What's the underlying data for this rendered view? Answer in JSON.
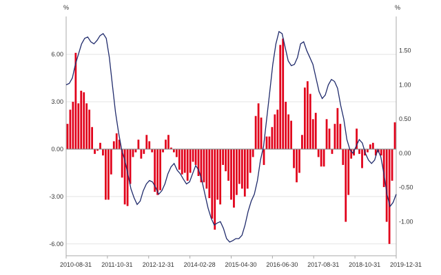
{
  "chart_data": {
    "type": "bar",
    "title": "",
    "left_axis": {
      "unit": "%",
      "ylim": [
        -6.75,
        8.4
      ],
      "ticks": [
        6,
        3,
        0,
        -3,
        -6
      ],
      "tick_labels": [
        "6.00",
        "3.00",
        "0.00",
        "-3.00",
        "-6.00"
      ]
    },
    "right_axis": {
      "unit": "%",
      "ylim": [
        -1.5,
        2.0
      ],
      "ticks": [
        1.5,
        1.0,
        0.5,
        0.0,
        -0.5,
        -1.0
      ],
      "tick_labels": [
        "1.50",
        "1.00",
        "0.50",
        "0.00",
        "-0.50",
        "-1.00"
      ]
    },
    "x_tick_labels": [
      "2010-08-31",
      "2011-10-31",
      "2012-12-31",
      "2014-02-28",
      "2015-04-30",
      "2016-06-30",
      "2017-08-31",
      "2018-10-31",
      "2019-12-31"
    ],
    "grid": true,
    "colors": {
      "bars": "#e1001a",
      "line": "#1f2a6b",
      "zero": "#888888",
      "grid": "#e4e4e4",
      "axis": "#aaaaaa"
    },
    "series": [
      {
        "axis": "left",
        "kind": "bar",
        "values": [
          1.6,
          2.5,
          3.0,
          6.1,
          2.9,
          3.7,
          3.6,
          2.9,
          2.5,
          1.4,
          -0.3,
          -0.1,
          0.4,
          -0.4,
          -3.2,
          -3.2,
          -1.6,
          0.5,
          1.0,
          0.6,
          -1.8,
          -3.5,
          -3.6,
          -2.2,
          -0.5,
          -0.2,
          0.6,
          -0.6,
          -0.3,
          0.9,
          0.5,
          -0.2,
          -2.7,
          -2.9,
          -2.6,
          -0.2,
          0.6,
          0.9,
          0.1,
          -0.2,
          -0.5,
          -1.3,
          -1.6,
          -1.5,
          -2.0,
          -1.5,
          -0.8,
          -1.0,
          -1.7,
          -2.1,
          -2.1,
          -2.5,
          -3.1,
          -4.4,
          -5.1,
          -3.2,
          -3.5,
          -1.0,
          -1.4,
          -2.0,
          -3.2,
          -3.7,
          -2.9,
          -2.2,
          -2.5,
          -3.0,
          -2.5,
          -1.5,
          -0.5,
          2.1,
          2.9,
          2.0,
          -1.0,
          0.8,
          0.8,
          1.4,
          2.2,
          2.5,
          6.6,
          7.0,
          3.0,
          2.2,
          1.8,
          -1.2,
          -2.1,
          -1.5,
          0.9,
          3.9,
          4.3,
          3.5,
          1.9,
          2.3,
          -0.5,
          -1.1,
          -1.1,
          1.9,
          1.3,
          -0.3,
          1.6,
          2.6,
          1.6,
          -1.0,
          -4.6,
          -2.9,
          -0.6,
          -0.4,
          1.3,
          -0.3,
          -1.2,
          -0.4,
          -0.2,
          0.3,
          0.4,
          -0.4,
          -0.2,
          -0.4,
          -2.4,
          -4.6,
          -6.0,
          -2.0,
          1.7
        ]
      },
      {
        "axis": "right",
        "kind": "line",
        "values": [
          1.0,
          1.02,
          1.1,
          1.3,
          1.45,
          1.6,
          1.68,
          1.7,
          1.63,
          1.6,
          1.65,
          1.72,
          1.75,
          1.68,
          1.4,
          1.0,
          0.6,
          0.3,
          0.05,
          -0.1,
          -0.3,
          -0.52,
          -0.65,
          -0.75,
          -0.7,
          -0.55,
          -0.45,
          -0.4,
          -0.42,
          -0.5,
          -0.6,
          -0.55,
          -0.45,
          -0.3,
          -0.2,
          -0.15,
          -0.25,
          -0.3,
          -0.38,
          -0.45,
          -0.42,
          -0.3,
          -0.18,
          -0.25,
          -0.4,
          -0.6,
          -0.8,
          -0.95,
          -1.05,
          -1.02,
          -1.0,
          -1.1,
          -1.25,
          -1.3,
          -1.28,
          -1.25,
          -1.25,
          -1.2,
          -1.05,
          -0.85,
          -0.7,
          -0.6,
          -0.4,
          -0.1,
          0.1,
          0.5,
          0.9,
          1.3,
          1.6,
          1.78,
          1.75,
          1.55,
          1.35,
          1.28,
          1.3,
          1.4,
          1.6,
          1.63,
          1.5,
          1.4,
          1.3,
          1.1,
          0.9,
          0.8,
          0.85,
          1.0,
          1.08,
          1.05,
          0.95,
          0.7,
          0.5,
          0.2,
          0.05,
          0.0,
          0.1,
          0.2,
          0.15,
          0.0,
          -0.1,
          -0.15,
          -0.1,
          0.05,
          -0.05,
          -0.3,
          -0.6,
          -0.78,
          -0.72,
          -0.6
        ]
      }
    ]
  }
}
